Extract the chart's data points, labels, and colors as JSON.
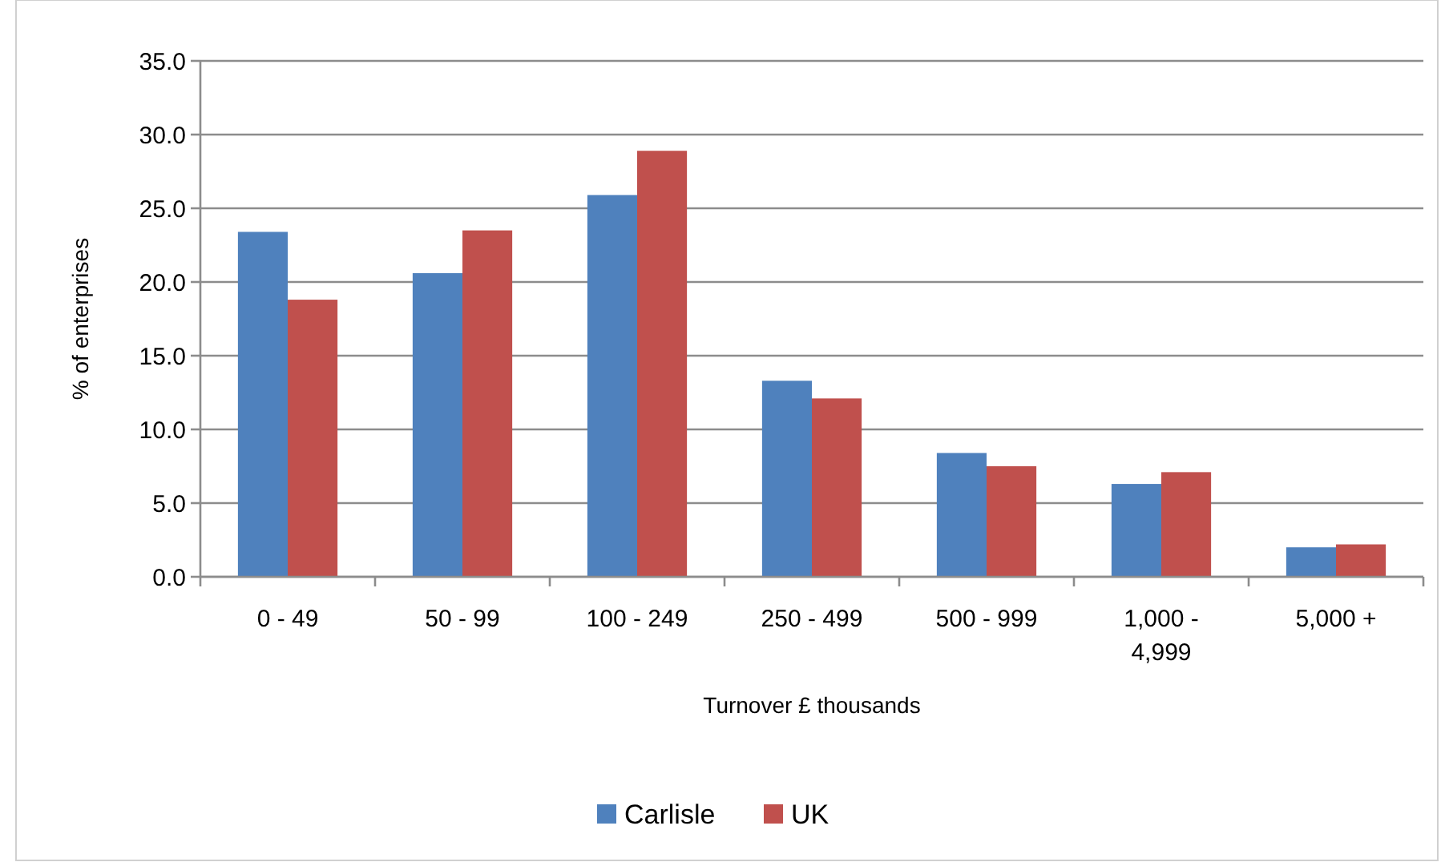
{
  "chart_data": {
    "type": "bar",
    "xlabel": "Turnover £ thousands",
    "ylabel": "% of enterprises",
    "categories": [
      "0 - 49",
      "50 - 99",
      "100 - 249",
      "250 - 499",
      "500 - 999",
      "1,000 - 4,999",
      "5,000 +"
    ],
    "series": [
      {
        "name": "Carlisle",
        "color": "#4f81bd",
        "values": [
          23.4,
          20.6,
          25.9,
          13.3,
          8.4,
          6.3,
          2.0
        ]
      },
      {
        "name": "UK",
        "color": "#c0504d",
        "values": [
          18.8,
          23.5,
          28.9,
          12.1,
          7.5,
          7.1,
          2.2
        ]
      }
    ],
    "ylim": [
      0,
      35
    ],
    "yticks": [
      {
        "value": 0,
        "label": "0.0"
      },
      {
        "value": 5,
        "label": "5.0"
      },
      {
        "value": 10,
        "label": "10.0"
      },
      {
        "value": 15,
        "label": "15.0"
      },
      {
        "value": 20,
        "label": "20.0"
      },
      {
        "value": 25,
        "label": "25.0"
      },
      {
        "value": 30,
        "label": "30.0"
      },
      {
        "value": 35,
        "label": "35.0"
      }
    ],
    "grid": "y",
    "legend": "bottom"
  }
}
